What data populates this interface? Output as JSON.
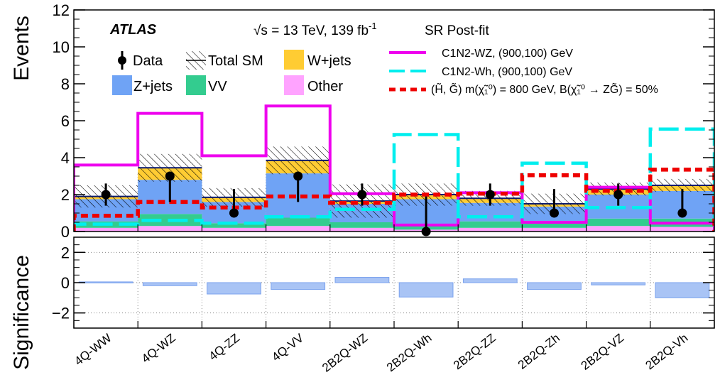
{
  "chart_data": {
    "type": "bar",
    "categories": [
      "4Q-WW",
      "4Q-WZ",
      "4Q-ZZ",
      "4Q-VV",
      "2B2Q-WZ",
      "2B2Q-Wh",
      "2B2Q-ZZ",
      "2B2Q-Zh",
      "2B2Q-VZ",
      "2B2Q-Vh"
    ],
    "ylabel": "Events",
    "ylim": [
      0,
      12
    ],
    "yticks": [
      "0",
      "2",
      "4",
      "6",
      "8",
      "10",
      "12"
    ],
    "experiment_label": "ATLAS",
    "energy_label": "√s = 13 TeV, 139 fb",
    "lumi_superscript": "-1",
    "region_label": "SR Post-fit",
    "stack_series": [
      {
        "name": "Other",
        "color": "#ffa3ff",
        "values": [
          0.2,
          0.3,
          0.2,
          0.3,
          0.2,
          0.1,
          0.2,
          0.2,
          0.3,
          0.25
        ]
      },
      {
        "name": "VV",
        "color": "#33cc8f",
        "values": [
          0.35,
          0.65,
          0.25,
          0.45,
          0.3,
          0.2,
          0.35,
          0.3,
          0.4,
          0.45
        ]
      },
      {
        "name": "Z+jets",
        "color": "#6fa3f5",
        "values": [
          1.2,
          1.85,
          1.15,
          2.4,
          1.0,
          1.45,
          1.0,
          0.85,
          1.3,
          1.5
        ]
      },
      {
        "name": "W+jets",
        "color": "#ffcc33",
        "values": [
          0.15,
          0.65,
          0.25,
          0.7,
          0.15,
          0.25,
          0.25,
          0.15,
          0.3,
          0.3
        ]
      }
    ],
    "total_sm": {
      "name": "Total SM",
      "values": [
        1.9,
        3.45,
        1.85,
        3.85,
        1.65,
        2.0,
        1.8,
        1.5,
        2.3,
        2.5
      ],
      "uncertainty": [
        0.6,
        0.75,
        0.5,
        0.75,
        0.9,
        0.6,
        0.4,
        0.55,
        0.35,
        0.35
      ]
    },
    "data": {
      "name": "Data",
      "values": [
        2,
        3,
        1,
        3,
        2,
        0,
        2,
        1,
        2,
        1
      ],
      "err_low": [
        1.4,
        1.6,
        0.8,
        1.6,
        1.4,
        0,
        1.4,
        0.8,
        1.4,
        0.8
      ],
      "err_high": [
        2.6,
        2.9,
        2.3,
        2.9,
        2.6,
        1.9,
        2.6,
        2.3,
        2.6,
        2.3
      ]
    },
    "signals": [
      {
        "name": "C1N2-WZ, (900,100) GeV",
        "color": "#ee00ee",
        "style": "solid",
        "values": [
          3.6,
          6.4,
          4.1,
          6.8,
          2.05,
          0.35,
          2.1,
          0.5,
          2.4,
          0.45
        ]
      },
      {
        "name": "C1N2-Wh, (900,100) GeV",
        "color": "#00eeee",
        "style": "dashed",
        "values": [
          0.4,
          0.6,
          0.45,
          0.8,
          1.2,
          5.25,
          0.8,
          3.7,
          1.3,
          5.55
        ]
      },
      {
        "name": "(H̃, G̃) m(χ̃₁⁰) = 800 GeV, B(χ̃₁⁰ → ZG̃) = 50%",
        "color": "#ee0000",
        "style": "dotted",
        "values": [
          0.85,
          1.6,
          1.3,
          1.9,
          1.55,
          2.0,
          2.05,
          3.05,
          2.2,
          3.35
        ]
      }
    ],
    "significance": {
      "ylabel": "Significance",
      "ylim": [
        -3,
        3
      ],
      "yticks": [
        "−2",
        "0",
        "2"
      ],
      "color": "#a9c4f5",
      "values": [
        0.05,
        -0.2,
        -0.75,
        -0.45,
        0.35,
        -0.95,
        0.25,
        -0.45,
        -0.15,
        -1.0
      ]
    },
    "grid": "dotted-vertical-and-lower-horizontal",
    "legend_placement": "top"
  }
}
